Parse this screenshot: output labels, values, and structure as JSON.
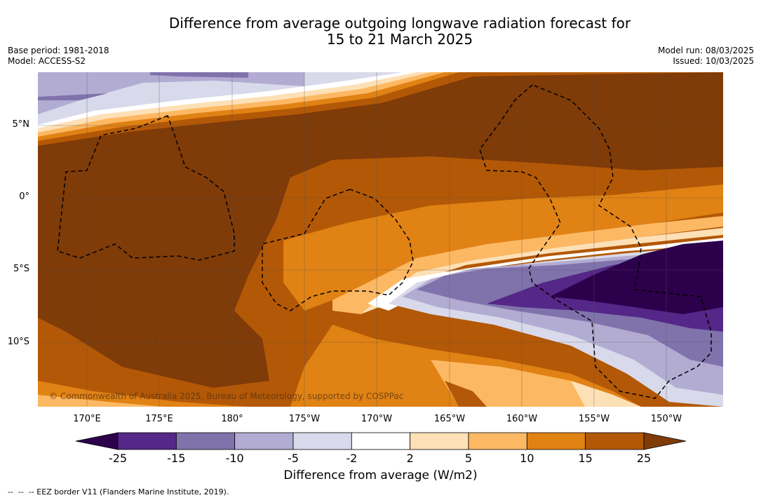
{
  "title_line1": "Difference from average outgoing longwave radiation forecast for",
  "title_line2": "15 to 21 March 2025",
  "base_period": "Base period: 1981-2018",
  "model": "Model: ACCESS-S2",
  "model_run": "Model run: 08/03/2025",
  "issued": "Issued: 10/03/2025",
  "lat_labels": [
    "5°N",
    "0°",
    "5°S",
    "10°S"
  ],
  "lon_labels": [
    "170°E",
    "175°E",
    "180°",
    "175°W",
    "170°W",
    "165°W",
    "160°W",
    "155°W",
    "150°W"
  ],
  "copyright": "© Commonwealth of Australia 2025, Bureau of Meteorology, supported by COSPPac",
  "colorbar": {
    "title": "Difference from average (W/m2)",
    "tick_labels": [
      "-25",
      "-15",
      "-10",
      "-5",
      "-2",
      "2",
      "5",
      "10",
      "15",
      "25"
    ],
    "colors": [
      "#2d004b",
      "#542788",
      "#8073ac",
      "#b2abd2",
      "#d8daeb",
      "#ffffff",
      "#fee0b6",
      "#fdb863",
      "#e08214",
      "#b35806",
      "#7f3b08"
    ]
  },
  "legend_note": "--  --  -- EEZ border V11 (Flanders Marine Institute, 2019)."
}
